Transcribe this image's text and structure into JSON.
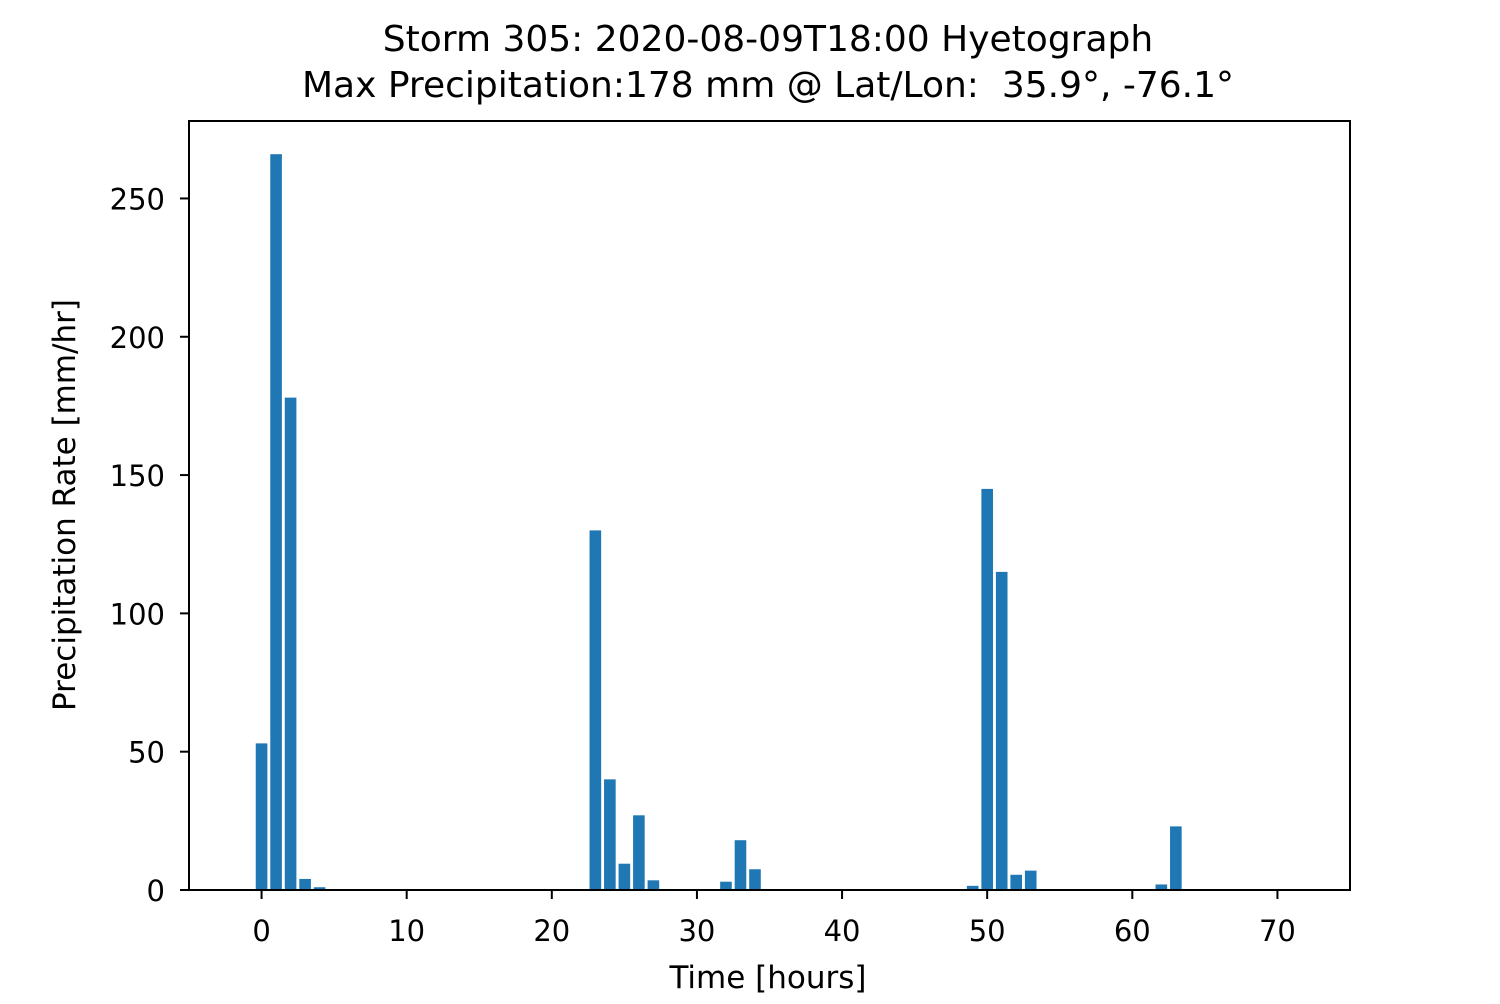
{
  "chart_data": {
    "type": "bar",
    "title": "Storm 305: 2020-08-09T18:00 Hyetograph",
    "subtitle": "Max Precipitation:178 mm @ Lat/Lon:  35.9°, -76.1°",
    "xlabel": "Time [hours]",
    "ylabel": "Precipitation Rate [mm/hr]",
    "xlim": [
      -5,
      75
    ],
    "ylim": [
      0,
      278
    ],
    "xticks": [
      0,
      10,
      20,
      30,
      40,
      50,
      60,
      70
    ],
    "yticks": [
      0,
      50,
      100,
      150,
      200,
      250
    ],
    "grid": false,
    "bar_color": "#1f77b4",
    "x": [
      0,
      1,
      2,
      3,
      4,
      23,
      24,
      25,
      26,
      27,
      32,
      33,
      34,
      49,
      50,
      51,
      52,
      53,
      62,
      63
    ],
    "values": [
      53,
      266,
      178,
      4,
      1,
      130,
      40,
      9.5,
      27,
      3.5,
      3,
      18,
      7.5,
      1.5,
      145,
      115,
      5.5,
      7,
      2,
      23
    ]
  }
}
